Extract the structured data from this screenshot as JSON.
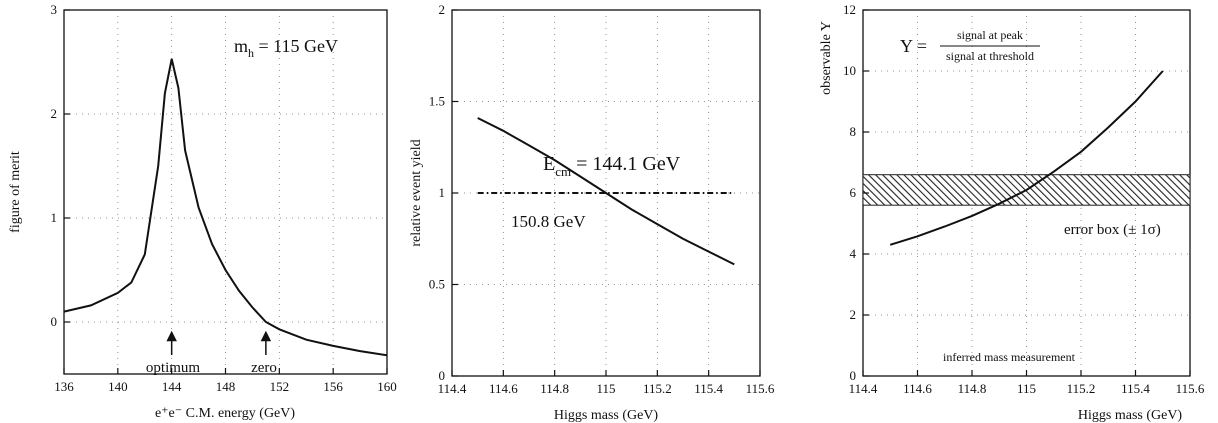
{
  "chart_data": [
    {
      "type": "line",
      "xlabel": "e⁺e⁻ C.M. energy (GeV)",
      "ylabel": "figure of merit",
      "xlim": [
        136,
        160
      ],
      "ylim": [
        -0.5,
        3
      ],
      "xticks": [
        136,
        140,
        144,
        148,
        152,
        156,
        160
      ],
      "xtick_labels": [
        "136",
        "140",
        "144",
        "148",
        "152",
        "156",
        "160"
      ],
      "yticks": [
        0,
        1,
        2,
        3
      ],
      "ytick_labels": [
        "0",
        "1",
        "2",
        "3"
      ],
      "grid": true,
      "legend": "",
      "annotations": {
        "mass_label": "m",
        "mass_sub": "h",
        "mass_value": " = 115 GeV",
        "optimum": "optimum",
        "zero": "zero"
      },
      "arrows": [
        {
          "name": "optimum",
          "x": 144
        },
        {
          "name": "zero",
          "x": 151
        }
      ],
      "series": [
        {
          "x": [
            136,
            138,
            140,
            141,
            142,
            143,
            143.5,
            144,
            144.5,
            145,
            146,
            147,
            148,
            149,
            150,
            151,
            152,
            154,
            156,
            158,
            160
          ],
          "y": [
            0.1,
            0.16,
            0.28,
            0.38,
            0.65,
            1.5,
            2.2,
            2.53,
            2.25,
            1.65,
            1.1,
            0.75,
            0.5,
            0.3,
            0.14,
            0.0,
            -0.07,
            -0.17,
            -0.23,
            -0.28,
            -0.32
          ]
        }
      ]
    },
    {
      "type": "line",
      "xlabel": "Higgs mass (GeV)",
      "ylabel": "relative event yield",
      "xlim": [
        114.4,
        115.6
      ],
      "ylim": [
        0,
        2
      ],
      "xticks": [
        114.4,
        114.6,
        114.8,
        115,
        115.2,
        115.4,
        115.6
      ],
      "xtick_labels": [
        "114.4",
        "114.6",
        "114.8",
        "115",
        "115.2",
        "115.4",
        "115.6"
      ],
      "yticks": [
        0,
        0.5,
        1,
        1.5,
        2
      ],
      "ytick_labels": [
        "0",
        "0.5",
        "1",
        "1.5",
        "2"
      ],
      "grid": true,
      "legend": "",
      "annotations": {
        "ecm_label": "E",
        "ecm_sub": "cm",
        "ecm_value": " = 144.1 GeV",
        "gev150_label": "150.8 GeV"
      },
      "series": [
        {
          "x": [
            114.5,
            114.6,
            114.7,
            114.8,
            114.9,
            115.0,
            115.1,
            115.2,
            115.3,
            115.4,
            115.5
          ],
          "y": [
            1.41,
            1.34,
            1.26,
            1.18,
            1.09,
            1.0,
            0.91,
            0.83,
            0.75,
            0.68,
            0.61
          ]
        },
        {
          "x": [
            114.5,
            115.5
          ],
          "y": [
            1.0,
            1.0
          ],
          "style": "dash-dot"
        }
      ]
    },
    {
      "type": "line",
      "xlabel": "Higgs mass (GeV)",
      "ylabel": "observable Y",
      "xlim": [
        114.4,
        115.6
      ],
      "ylim": [
        0,
        12
      ],
      "xticks": [
        114.4,
        114.6,
        114.8,
        115,
        115.2,
        115.4,
        115.6
      ],
      "xtick_labels": [
        "114.4",
        "114.6",
        "114.8",
        "115",
        "115.2",
        "115.4",
        "115.6"
      ],
      "yticks": [
        0,
        2,
        4,
        6,
        8,
        10,
        12
      ],
      "ytick_labels": [
        "0",
        "2",
        "4",
        "6",
        "8",
        "10",
        "12"
      ],
      "grid": true,
      "legend": "",
      "annotations": {
        "formula_lhs": "Y =",
        "formula_num": "signal at peak",
        "formula_den": "signal at threshold",
        "error_box": "error box (± 1σ)",
        "inferred": "inferred mass measurement"
      },
      "error_band": {
        "y_low": 5.6,
        "y_high": 6.6,
        "x_from": 114.4,
        "x_to": 115.6
      },
      "series": [
        {
          "x": [
            114.5,
            114.6,
            114.7,
            114.8,
            114.9,
            115.0,
            115.1,
            115.2,
            115.3,
            115.4,
            115.5
          ],
          "y": [
            4.3,
            4.58,
            4.9,
            5.25,
            5.65,
            6.1,
            6.7,
            7.35,
            8.15,
            9.0,
            10.0
          ]
        }
      ]
    }
  ]
}
